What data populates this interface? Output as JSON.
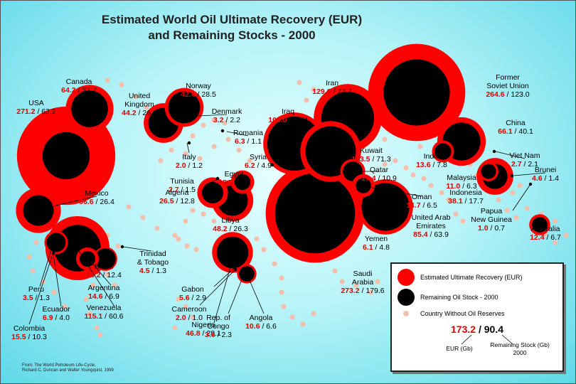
{
  "title": {
    "line1": "Estimated World Oil Ultimate Recovery (EUR)",
    "line2": "and Remaining Stocks - 2000"
  },
  "colors": {
    "eur": "#ff0000",
    "remaining": "#000000",
    "no_reserves": "#f4c0ae"
  },
  "countries": [
    {
      "name": "Canada",
      "eur": "64.2",
      "remaining": "37.7"
    },
    {
      "name": "USA",
      "eur": "271.2",
      "remaining": "62.2"
    },
    {
      "name": "Norway",
      "eur": "42.4",
      "remaining": "28.5"
    },
    {
      "name": "United Kingdom",
      "eur": "44.2",
      "remaining": "26.0"
    },
    {
      "name": "Denmark",
      "eur": "3.2",
      "remaining": "2.2"
    },
    {
      "name": "Romania",
      "eur": "6.3",
      "remaining": "1.1"
    },
    {
      "name": "Italy",
      "eur": "2.0",
      "remaining": "1.2"
    },
    {
      "name": "Syria",
      "eur": "6.2",
      "remaining": "4.9"
    },
    {
      "name": "Egypt",
      "eur": "15.5",
      "remaining": "7.1"
    },
    {
      "name": "Tunisia",
      "eur": "2.7",
      "remaining": "1.5"
    },
    {
      "name": "Algeria",
      "eur": "26.5",
      "remaining": "12.8"
    },
    {
      "name": "Libya",
      "eur": "48.2",
      "remaining": "26.3"
    },
    {
      "name": "Mexico",
      "eur": "56.6",
      "remaining": "26.4"
    },
    {
      "name": "Trinidad & Tobago",
      "eur": "4.5",
      "remaining": "1.3"
    },
    {
      "name": "Brazil",
      "eur": "16.2",
      "remaining": "12.4"
    },
    {
      "name": "Argentina",
      "eur": "14.6",
      "remaining": "6.9"
    },
    {
      "name": "Venezuela",
      "eur": "115.1",
      "remaining": "60.6"
    },
    {
      "name": "Peru",
      "eur": "3.5",
      "remaining": "1.3"
    },
    {
      "name": "Ecuador",
      "eur": "6.9",
      "remaining": "4.0"
    },
    {
      "name": "Colombia",
      "eur": "15.5",
      "remaining": "10.3"
    },
    {
      "name": "Nigeria",
      "eur": "46.8",
      "remaining": "28.1"
    },
    {
      "name": "Gabon",
      "eur": "5.6",
      "remaining": "2.9"
    },
    {
      "name": "Cameroon",
      "eur": "2.0",
      "remaining": "1.0"
    },
    {
      "name": "Rep. of Congo",
      "eur": "3.6",
      "remaining": "2.3"
    },
    {
      "name": "Angola",
      "eur": "10.6",
      "remaining": "6.6"
    },
    {
      "name": "Iran",
      "eur": "129.6",
      "remaining": "77.7"
    },
    {
      "name": "Iraq",
      "eur": "109.0",
      "remaining": "82.4"
    },
    {
      "name": "Kuwait",
      "eur": "103.5",
      "remaining": "71.3"
    },
    {
      "name": "Qatar",
      "eur": "17.4",
      "remaining": "10.9"
    },
    {
      "name": "Oman",
      "eur": "14.7",
      "remaining": "6.5"
    },
    {
      "name": "United Arab Emirates",
      "eur": "85.4",
      "remaining": "63.9"
    },
    {
      "name": "Yemen",
      "eur": "6.1",
      "remaining": "4.8"
    },
    {
      "name": "Saudi Arabia",
      "eur": "273.2",
      "remaining": "179.6"
    },
    {
      "name": "Former Soviet Union",
      "eur": "264.6",
      "remaining": "123.0"
    },
    {
      "name": "China",
      "eur": "66.1",
      "remaining": "40.1"
    },
    {
      "name": "India",
      "eur": "13.6",
      "remaining": "7.8"
    },
    {
      "name": "Viet Nam",
      "eur": "2.7",
      "remaining": "2.1"
    },
    {
      "name": "Malaysia",
      "eur": "11.0",
      "remaining": "6.3"
    },
    {
      "name": "Brunei",
      "eur": "4.6",
      "remaining": "1.4"
    },
    {
      "name": "Indonesia",
      "eur": "38.1",
      "remaining": "17.7"
    },
    {
      "name": "Papua New Guinea",
      "eur": "1.0",
      "remaining": "0.7"
    },
    {
      "name": "Australia",
      "eur": "12.4",
      "remaining": "6.7"
    }
  ],
  "legend": {
    "eur_label": "Estimated Ultimate Recovery (EUR)",
    "remaining_label": "Remaining Oil Stock - 2000",
    "no_reserves_label": "Country Without Oil Reserves",
    "example_eur": "173.2",
    "example_remaining": "90.4",
    "eur_unit": "EUR (Gb)",
    "remaining_unit": "Remaining Stock (Gb)",
    "remaining_year": "2000"
  },
  "source": {
    "line1": "From: The World Petroleum Life-Cycle,",
    "line2": "Richard C. Duncan and Walter Youngquist, 1999"
  }
}
